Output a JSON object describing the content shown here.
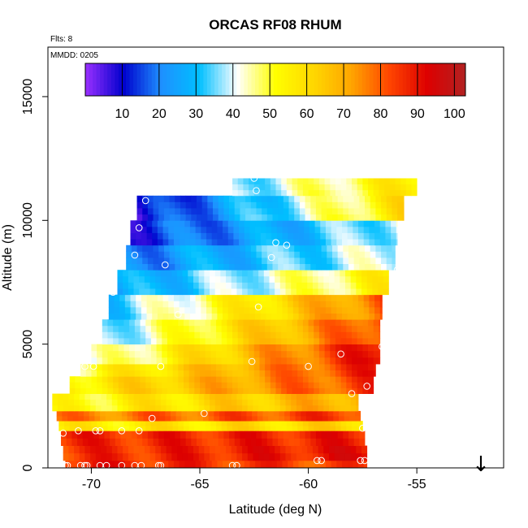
{
  "header": {
    "title": "ORCAS RF08 RHUM",
    "flts_label": "Flts: 8",
    "mmdd_label": "MMDD: 0205"
  },
  "colorbar": {
    "ticks": [
      "10",
      "20",
      "30",
      "40",
      "50",
      "60",
      "70",
      "80",
      "90",
      "100"
    ],
    "tick_values": [
      10,
      20,
      30,
      40,
      50,
      60,
      70,
      80,
      90,
      100
    ],
    "range": [
      0,
      103
    ],
    "stops": [
      "#9b30ff",
      "#0000cd",
      "#1e90ff",
      "#00bfff",
      "#ffffff",
      "#ffff00",
      "#ffd700",
      "#ffa500",
      "#ff4500",
      "#dd0000",
      "#b22222"
    ]
  },
  "arrow": {
    "symbol": "↓"
  },
  "chart_data": {
    "type": "heatmap",
    "title": "ORCAS RF08 RHUM",
    "xlabel": "Latitude (deg N)",
    "ylabel": "Altitude (m)",
    "xlim": [
      -72,
      -51
    ],
    "ylim": [
      0,
      17000
    ],
    "x_ticks": [
      "-70",
      "-65",
      "-60",
      "-55"
    ],
    "x_tick_values": [
      -70,
      -65,
      -60,
      -55
    ],
    "y_ticks": [
      "0",
      "5000",
      "10000",
      "15000"
    ],
    "y_tick_values": [
      0,
      5000,
      10000,
      15000
    ],
    "z_label": "RHUM",
    "z_range": [
      0,
      103
    ],
    "layers": [
      {
        "alt": [
          0,
          300
        ],
        "lat": [
          -71.2,
          -57.3
        ],
        "rh_south": 88,
        "rh_north": 82
      },
      {
        "alt": [
          300,
          900
        ],
        "lat": [
          -71.3,
          -57.3
        ],
        "rh_south": 85,
        "rh_north": 90
      },
      {
        "alt": [
          900,
          1500
        ],
        "lat": [
          -71.4,
          -57.4
        ],
        "rh_south": 86,
        "rh_north": 88
      },
      {
        "alt": [
          1500,
          1900
        ],
        "lat": [
          -71.5,
          -57.5
        ],
        "rh_south": 55,
        "rh_north": 62
      },
      {
        "alt": [
          1900,
          2300
        ],
        "lat": [
          -71.6,
          -57.6
        ],
        "rh_south": 75,
        "rh_north": 85
      },
      {
        "alt": [
          2300,
          3000
        ],
        "lat": [
          -71.8,
          -57.7
        ],
        "rh_south": 50,
        "rh_north": 72
      },
      {
        "alt": [
          3000,
          3700
        ],
        "lat": [
          -71.0,
          -57.0
        ],
        "rh_south": 55,
        "rh_north": 85
      },
      {
        "alt": [
          3700,
          4200
        ],
        "lat": [
          -70.5,
          -56.9
        ],
        "rh_south": 50,
        "rh_north": 88
      },
      {
        "alt": [
          4200,
          5000
        ],
        "lat": [
          -70.0,
          -56.7
        ],
        "rh_south": 40,
        "rh_north": 92
      },
      {
        "alt": [
          5000,
          6000
        ],
        "lat": [
          -69.5,
          -56.7
        ],
        "rh_south": 35,
        "rh_north": 85
      },
      {
        "alt": [
          6000,
          7000
        ],
        "lat": [
          -69.2,
          -56.6
        ],
        "rh_south": 32,
        "rh_north": 80
      },
      {
        "alt": [
          7000,
          8000
        ],
        "lat": [
          -68.8,
          -56.3
        ],
        "rh_south": 25,
        "rh_north": 55
      },
      {
        "alt": [
          8000,
          9000
        ],
        "lat": [
          -68.4,
          -56.0
        ],
        "rh_south": 20,
        "rh_north": 42
      },
      {
        "alt": [
          9000,
          10000
        ],
        "lat": [
          -68.2,
          -55.9
        ],
        "rh_south": 12,
        "rh_north": 40
      },
      {
        "alt": [
          10000,
          11000
        ],
        "lat": [
          -67.9,
          -55.6
        ],
        "rh_south": 8,
        "rh_north": 60
      },
      {
        "alt": [
          11000,
          11700
        ],
        "lat": [
          -63.5,
          -55.0
        ],
        "rh_south": 35,
        "rh_north": 58
      }
    ],
    "sample_points": [
      {
        "lat": -71.2,
        "alt": 100
      },
      {
        "lat": -71.1,
        "alt": 100
      },
      {
        "lat": -70.5,
        "alt": 100
      },
      {
        "lat": -70.3,
        "alt": 100
      },
      {
        "lat": -70.2,
        "alt": 100
      },
      {
        "lat": -69.6,
        "alt": 100
      },
      {
        "lat": -69.3,
        "alt": 100
      },
      {
        "lat": -68.6,
        "alt": 100
      },
      {
        "lat": -68.0,
        "alt": 100
      },
      {
        "lat": -67.7,
        "alt": 100
      },
      {
        "lat": -66.9,
        "alt": 100
      },
      {
        "lat": -66.8,
        "alt": 100
      },
      {
        "lat": -63.5,
        "alt": 100
      },
      {
        "lat": -63.3,
        "alt": 100
      },
      {
        "lat": -59.6,
        "alt": 300
      },
      {
        "lat": -59.4,
        "alt": 300
      },
      {
        "lat": -57.6,
        "alt": 300
      },
      {
        "lat": -57.4,
        "alt": 300
      },
      {
        "lat": -71.3,
        "alt": 1400
      },
      {
        "lat": -70.6,
        "alt": 1500
      },
      {
        "lat": -69.8,
        "alt": 1500
      },
      {
        "lat": -69.6,
        "alt": 1500
      },
      {
        "lat": -68.6,
        "alt": 1500
      },
      {
        "lat": -67.8,
        "alt": 1500
      },
      {
        "lat": -57.5,
        "alt": 1600
      },
      {
        "lat": -67.2,
        "alt": 2000
      },
      {
        "lat": -64.8,
        "alt": 2200
      },
      {
        "lat": -58.0,
        "alt": 3000
      },
      {
        "lat": -57.3,
        "alt": 3300
      },
      {
        "lat": -70.3,
        "alt": 4100
      },
      {
        "lat": -69.9,
        "alt": 4100
      },
      {
        "lat": -66.8,
        "alt": 4100
      },
      {
        "lat": -60.0,
        "alt": 4100
      },
      {
        "lat": -62.6,
        "alt": 4300
      },
      {
        "lat": -58.5,
        "alt": 4600
      },
      {
        "lat": -56.6,
        "alt": 4900
      },
      {
        "lat": -66.0,
        "alt": 6200
      },
      {
        "lat": -62.3,
        "alt": 6500
      },
      {
        "lat": -69.0,
        "alt": 7100
      },
      {
        "lat": -66.6,
        "alt": 8200
      },
      {
        "lat": -55.9,
        "alt": 8000
      },
      {
        "lat": -61.7,
        "alt": 8500
      },
      {
        "lat": -68.0,
        "alt": 8600
      },
      {
        "lat": -61.5,
        "alt": 9100
      },
      {
        "lat": -61.0,
        "alt": 9000
      },
      {
        "lat": -67.8,
        "alt": 9700
      },
      {
        "lat": -67.5,
        "alt": 10800
      },
      {
        "lat": -62.4,
        "alt": 11200
      },
      {
        "lat": -62.5,
        "alt": 11700
      }
    ]
  }
}
